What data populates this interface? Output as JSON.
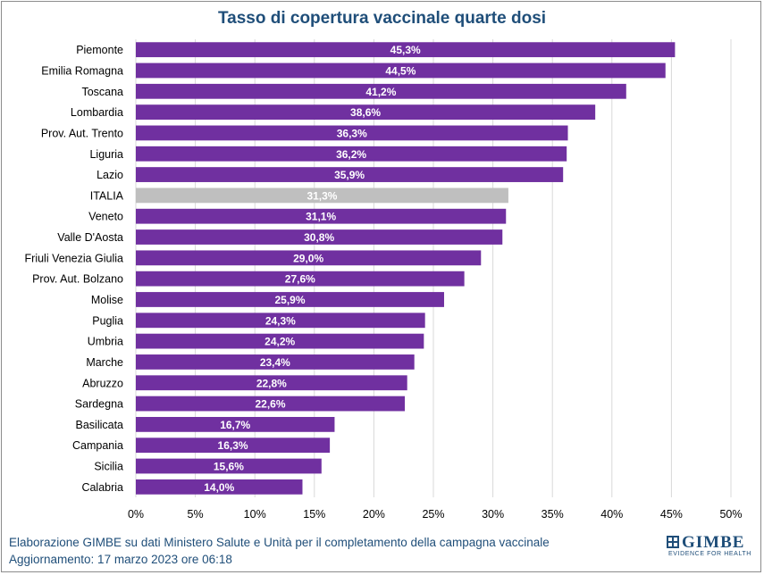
{
  "chart_data": {
    "type": "bar",
    "orientation": "horizontal",
    "title": "Tasso di copertura vaccinale quarte dosi",
    "categories": [
      "Piemonte",
      "Emilia Romagna",
      "Toscana",
      "Lombardia",
      "Prov. Aut. Trento",
      "Liguria",
      "Lazio",
      "ITALIA",
      "Veneto",
      "Valle D'Aosta",
      "Friuli Venezia Giulia",
      "Prov. Aut. Bolzano",
      "Molise",
      "Puglia",
      "Umbria",
      "Marche",
      "Abruzzo",
      "Sardegna",
      "Basilicata",
      "Campania",
      "Sicilia",
      "Calabria"
    ],
    "values": [
      45.3,
      44.5,
      41.2,
      38.6,
      36.3,
      36.2,
      35.9,
      31.3,
      31.1,
      30.8,
      29.0,
      27.6,
      25.9,
      24.3,
      24.2,
      23.4,
      22.8,
      22.6,
      16.7,
      16.3,
      15.6,
      14.0
    ],
    "value_labels": [
      "45,3%",
      "44,5%",
      "41,2%",
      "38,6%",
      "36,3%",
      "36,2%",
      "35,9%",
      "31,3%",
      "31,1%",
      "30,8%",
      "29,0%",
      "27,6%",
      "25,9%",
      "24,3%",
      "24,2%",
      "23,4%",
      "22,8%",
      "22,6%",
      "16,7%",
      "16,3%",
      "15,6%",
      "14,0%"
    ],
    "xlim": [
      0,
      50
    ],
    "xticks": [
      0,
      5,
      10,
      15,
      20,
      25,
      30,
      35,
      40,
      45,
      50
    ],
    "xtick_labels": [
      "0%",
      "5%",
      "10%",
      "15%",
      "20%",
      "25%",
      "30%",
      "35%",
      "40%",
      "45%",
      "50%"
    ],
    "grid": true,
    "colors": {
      "bar": "#7030a0",
      "highlight": "#bfbfbf",
      "highlight_category": "ITALIA"
    }
  },
  "footer": {
    "line1": "Elaborazione GIMBE su dati Ministero Salute e Unità per il completamento della campagna vaccinale",
    "line2": "Aggiornamento: 17 marzo 2023 ore 06:18"
  },
  "logo": {
    "name": "GIMBE",
    "tagline": "EVIDENCE FOR HEALTH",
    "icon": "gimbe-logo-icon"
  }
}
